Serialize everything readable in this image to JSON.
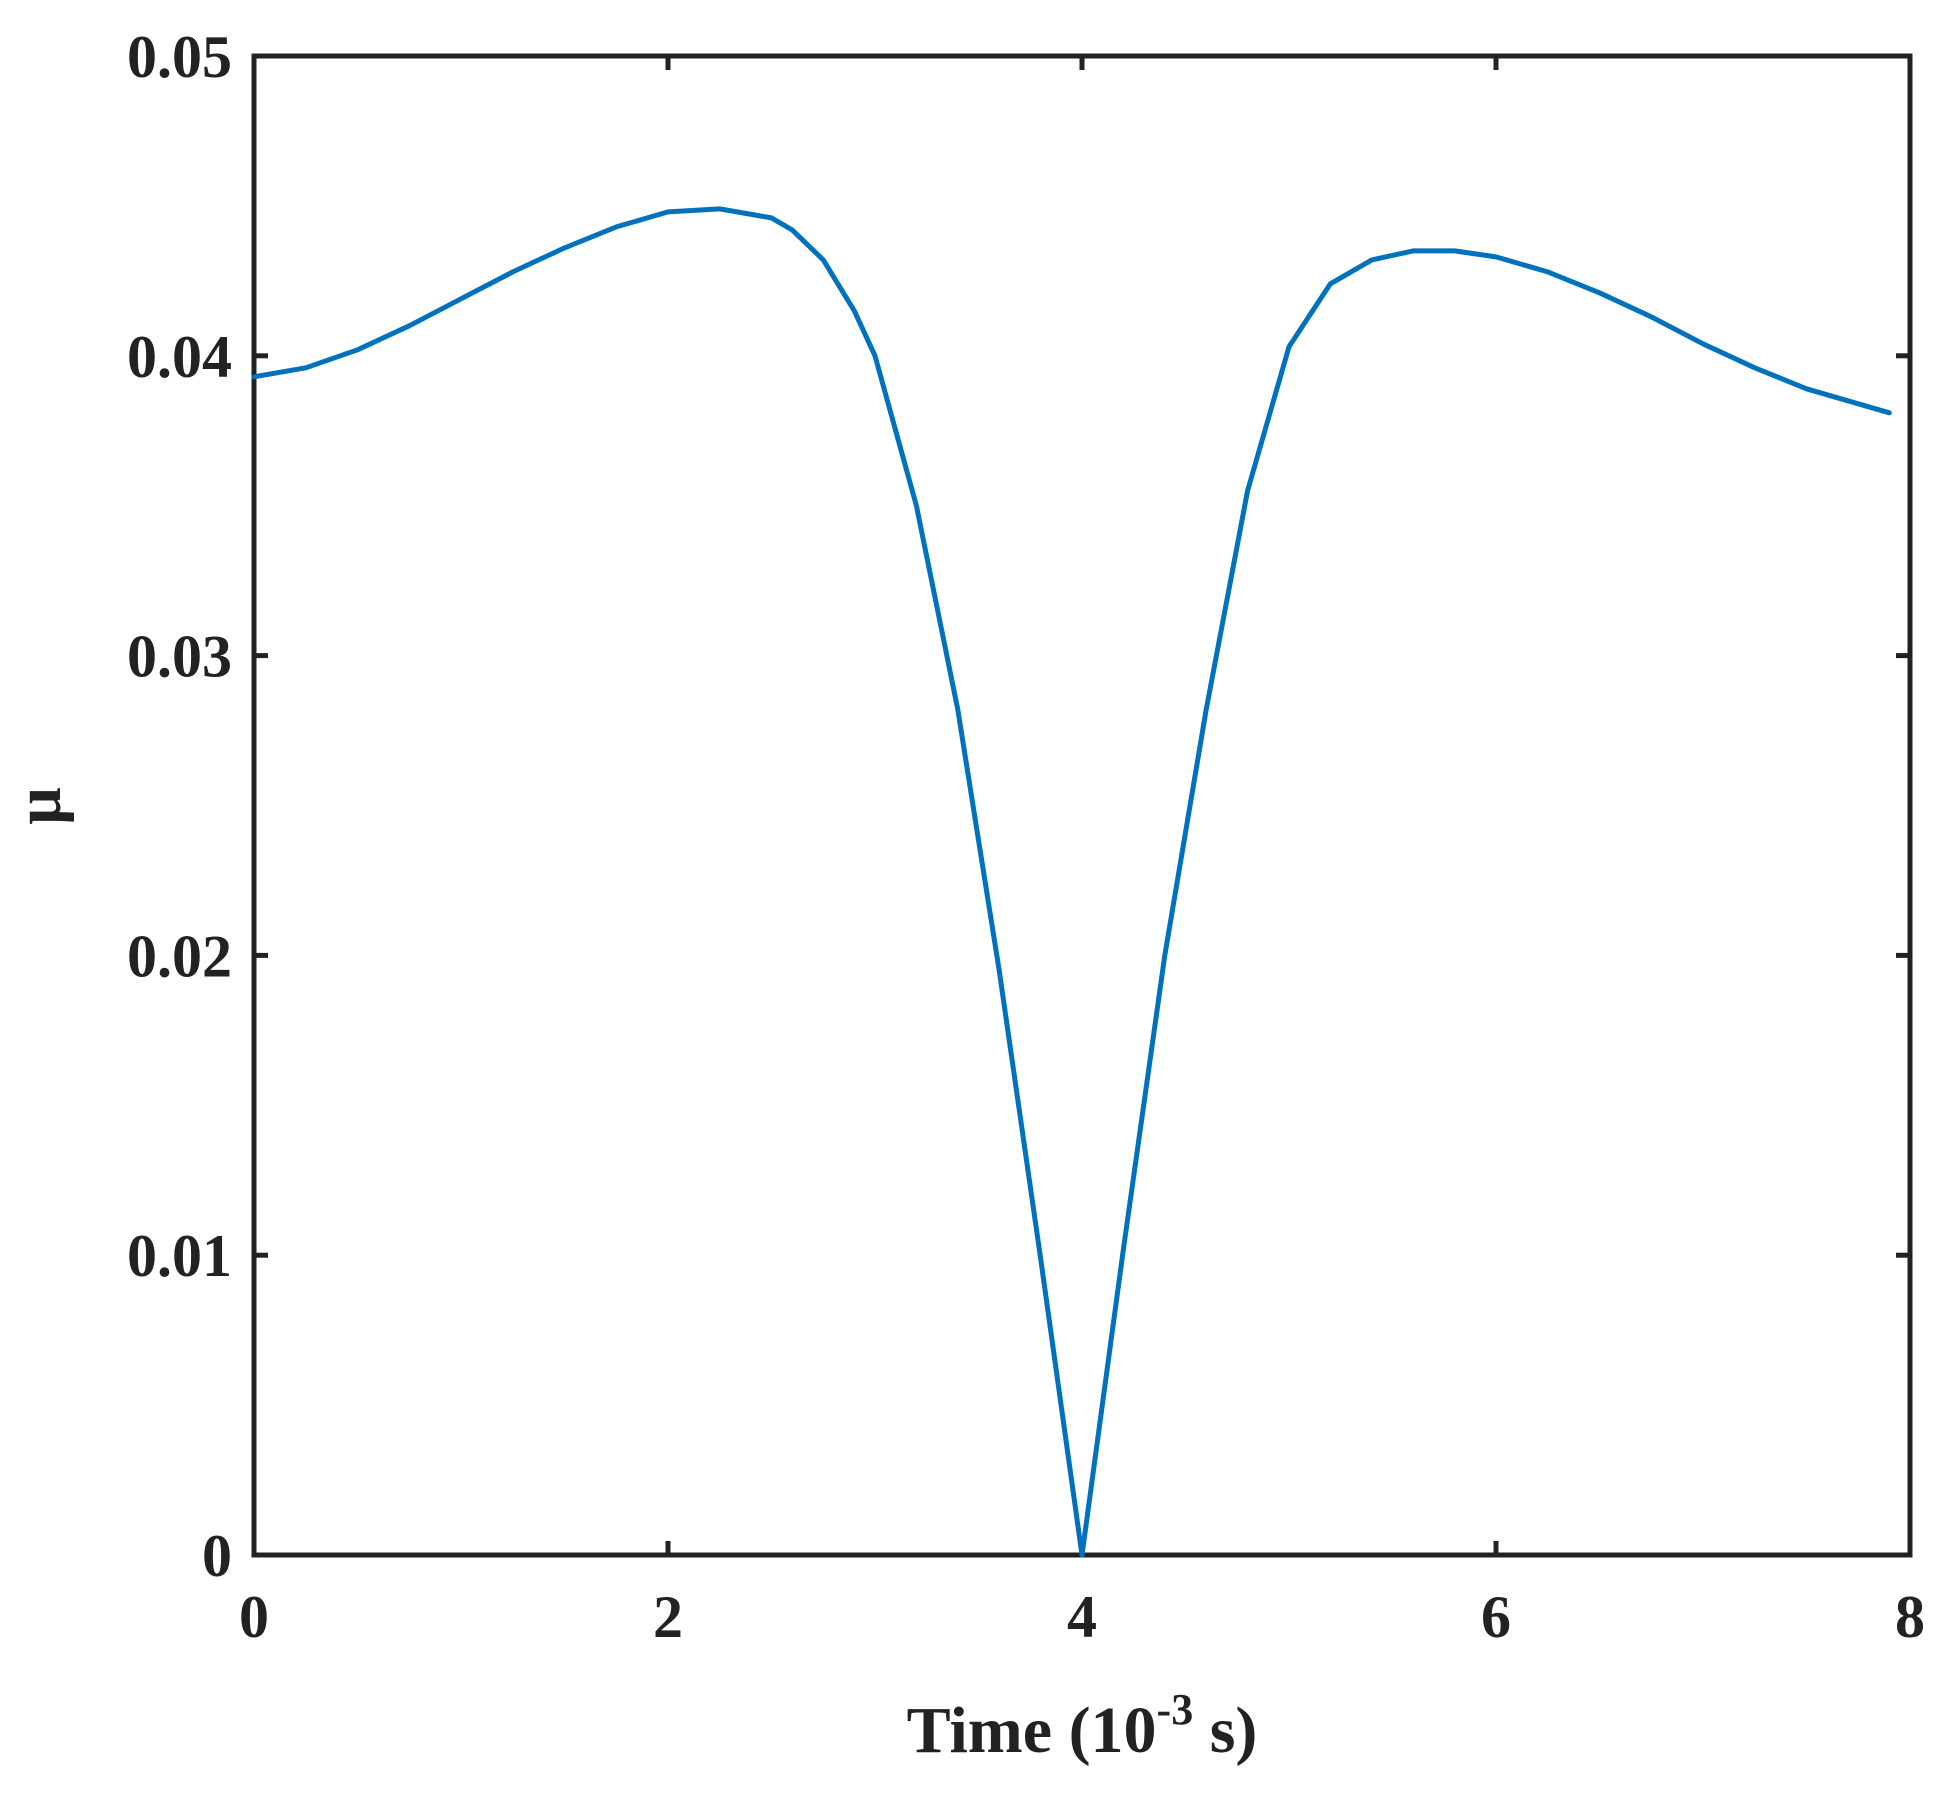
{
  "chart_data": {
    "type": "line",
    "title": "",
    "xlabel": {
      "main": "Time (10",
      "sup": "-3",
      "unit": " s)"
    },
    "ylabel": "μ",
    "xlim": [
      0,
      8
    ],
    "ylim": [
      0,
      0.05
    ],
    "grid": false,
    "x_ticks": [
      0,
      2,
      4,
      6,
      8
    ],
    "x_tick_labels": [
      "0",
      "2",
      "4",
      "6",
      "8"
    ],
    "y_ticks": [
      0,
      0.01,
      0.02,
      0.03,
      0.04,
      0.05
    ],
    "y_tick_labels": [
      "0",
      "0.01",
      "0.02",
      "0.03",
      "0.04",
      "0.05"
    ],
    "series": [
      {
        "color": "#0072BD",
        "x": [
          0,
          0.25,
          0.5,
          0.75,
          1.0,
          1.25,
          1.5,
          1.75,
          2.0,
          2.25,
          2.5,
          2.6,
          2.75,
          2.9,
          3.0,
          3.2,
          3.4,
          3.6,
          3.8,
          4.0,
          4.2,
          4.4,
          4.6,
          4.8,
          5.0,
          5.2,
          5.4,
          5.6,
          5.8,
          6.0,
          6.25,
          6.5,
          6.75,
          7.0,
          7.25,
          7.5,
          7.75,
          7.9
        ],
        "y": [
          0.0393,
          0.0396,
          0.0402,
          0.041,
          0.0419,
          0.0428,
          0.0436,
          0.0443,
          0.0448,
          0.0449,
          0.0446,
          0.0442,
          0.0432,
          0.0415,
          0.04,
          0.035,
          0.0282,
          0.0195,
          0.0099,
          0.0,
          0.0102,
          0.02,
          0.0282,
          0.0355,
          0.0403,
          0.0424,
          0.0432,
          0.0435,
          0.0435,
          0.0433,
          0.0428,
          0.0421,
          0.0413,
          0.0404,
          0.0396,
          0.0389,
          0.0384,
          0.0381
        ]
      }
    ]
  }
}
